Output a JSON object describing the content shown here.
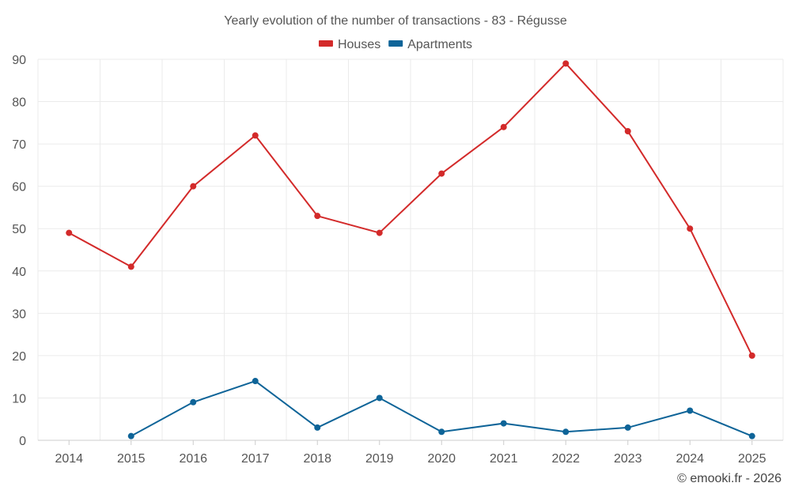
{
  "chart_data": {
    "type": "line",
    "title": "Yearly evolution of the number of transactions - 83 - Régusse",
    "categories": [
      "2014",
      "2015",
      "2016",
      "2017",
      "2018",
      "2019",
      "2020",
      "2021",
      "2022",
      "2023",
      "2024",
      "2025"
    ],
    "series": [
      {
        "name": "Houses",
        "color": "#d32a2a",
        "values": [
          49,
          41,
          60,
          72,
          53,
          49,
          63,
          74,
          89,
          73,
          50,
          20
        ]
      },
      {
        "name": "Apartments",
        "color": "#0e6498",
        "values": [
          null,
          1,
          9,
          14,
          3,
          10,
          2,
          4,
          2,
          3,
          7,
          1
        ]
      }
    ],
    "ylim": [
      0,
      90
    ],
    "yticks": [
      0,
      10,
      20,
      30,
      40,
      50,
      60,
      70,
      80,
      90
    ],
    "xlabel": "",
    "ylabel": "",
    "grid": true,
    "legend_position": "top-center"
  },
  "credit": "© emooki.fr - 2026"
}
